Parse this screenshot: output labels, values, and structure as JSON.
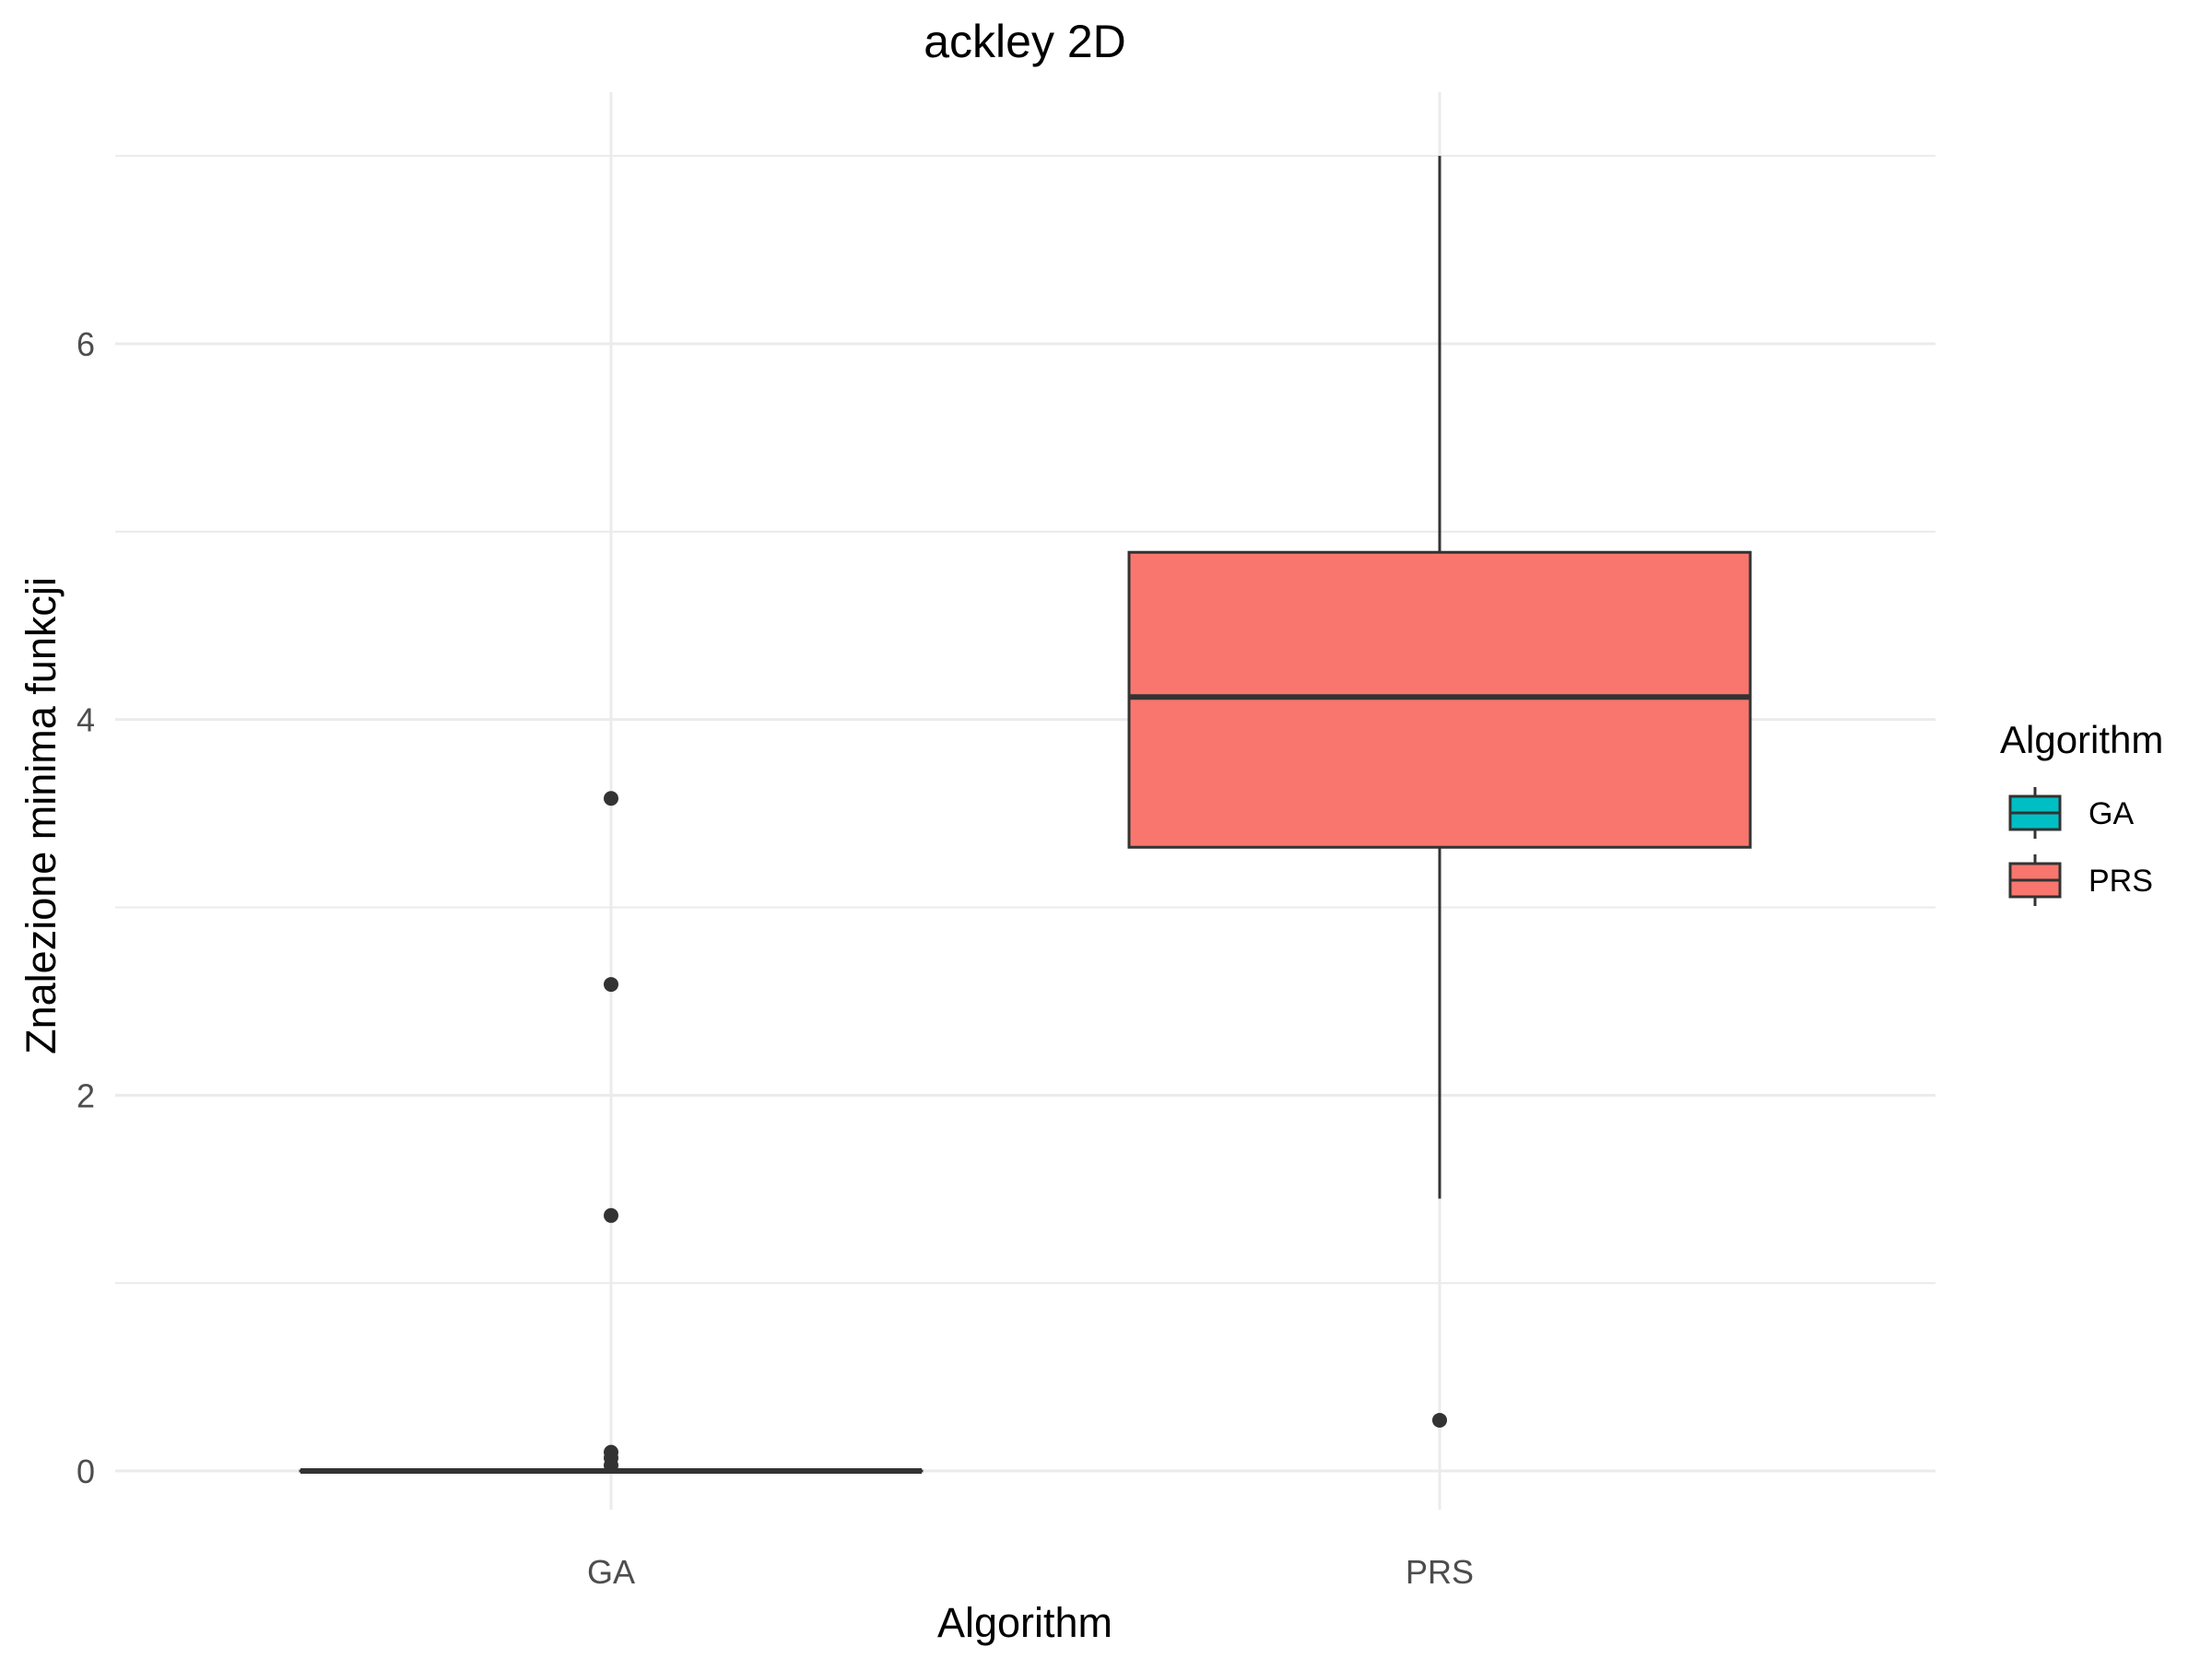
{
  "chart_data": {
    "type": "box",
    "title": "ackley 2D",
    "xlabel": "Algorithm",
    "ylabel": "Znalezione minima funkcji",
    "categories": [
      "GA",
      "PRS"
    ],
    "ylim": [
      -0.2,
      7.2
    ],
    "yticks": [
      0,
      2,
      4,
      6
    ],
    "ytick_labels": [
      "0",
      "2",
      "4",
      "6"
    ],
    "grid": true,
    "legend": {
      "title": "Algorithm",
      "position": "right",
      "entries": [
        {
          "label": "GA",
          "color": "#00BFC4"
        },
        {
          "label": "PRS",
          "color": "#F8766D"
        }
      ]
    },
    "boxes": [
      {
        "name": "GA",
        "color": "#00BFC4",
        "min": 0.0,
        "q1": 0.0,
        "median": 0.0,
        "q3": 0.0,
        "max": 0.0,
        "outliers": [
          3.58,
          2.59,
          1.36,
          0.1,
          0.07,
          0.03
        ]
      },
      {
        "name": "PRS",
        "color": "#F8766D",
        "min": 1.45,
        "q1": 3.32,
        "median": 4.12,
        "q3": 4.89,
        "max": 7.0,
        "outliers": [
          0.27
        ]
      }
    ]
  }
}
